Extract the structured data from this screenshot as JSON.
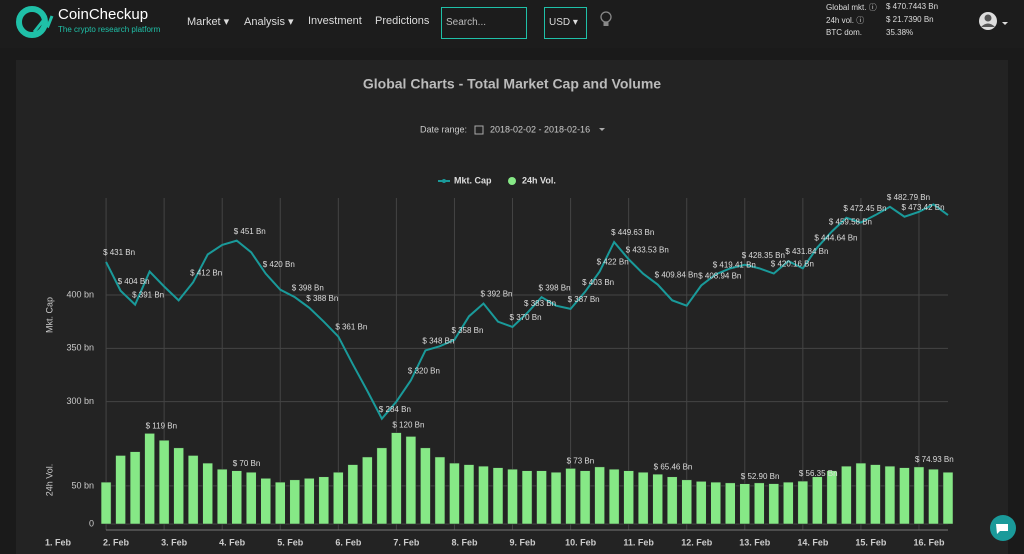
{
  "header": {
    "brand": "CoinCheckup",
    "tagline": "The crypto research platform",
    "menu": [
      "Market",
      "Analysis",
      "Investment",
      "Predictions"
    ],
    "search_placeholder": "Search...",
    "currency": "USD",
    "stats": [
      {
        "label": "Global mkt.",
        "value": "$ 470.7443 Bn"
      },
      {
        "label": "24h vol.",
        "value": "$ 21.7390 Bn"
      },
      {
        "label": "BTC dom.",
        "value": "35.38%"
      }
    ]
  },
  "chart_data": {
    "type": "line",
    "title": "Global Charts - Total Market Cap and Volume",
    "date_range_label": "Date range:",
    "date_range": "2018-02-02 - 2018-02-16",
    "ylabel": "Mkt. Cap",
    "y2label": "24h Vol.",
    "x": [
      2,
      2.25,
      2.5,
      2.75,
      3,
      3.25,
      3.5,
      3.75,
      4,
      4.25,
      4.5,
      4.75,
      5,
      5.25,
      5.5,
      5.75,
      6,
      6.25,
      6.5,
      6.75,
      7,
      7.25,
      7.5,
      7.75,
      8,
      8.25,
      8.5,
      8.75,
      9,
      9.25,
      9.5,
      9.75,
      10,
      10.25,
      10.5,
      10.75,
      11,
      11.25,
      11.5,
      11.75,
      12,
      12.25,
      12.5,
      12.75,
      13,
      13.25,
      13.5,
      13.75,
      14,
      14.25,
      14.5,
      14.75,
      15,
      15.25,
      15.5,
      15.75,
      16,
      16.25,
      16.5
    ],
    "xlim": [
      1,
      16.5
    ],
    "xticks": [
      {
        "value": 1,
        "label": "1. Feb"
      },
      {
        "value": 2,
        "label": "2. Feb"
      },
      {
        "value": 3,
        "label": "3. Feb"
      },
      {
        "value": 4,
        "label": "4. Feb"
      },
      {
        "value": 5,
        "label": "5. Feb"
      },
      {
        "value": 6,
        "label": "6. Feb"
      },
      {
        "value": 7,
        "label": "7. Feb"
      },
      {
        "value": 8,
        "label": "8. Feb"
      },
      {
        "value": 9,
        "label": "9. Feb"
      },
      {
        "value": 10,
        "label": "10. Feb"
      },
      {
        "value": 11,
        "label": "11. Feb"
      },
      {
        "value": 12,
        "label": "12. Feb"
      },
      {
        "value": 13,
        "label": "13. Feb"
      },
      {
        "value": 14,
        "label": "14. Feb"
      },
      {
        "value": 15,
        "label": "15. Feb"
      },
      {
        "value": 16,
        "label": "16. Feb"
      }
    ],
    "ylim": [
      264,
      491
    ],
    "yticks": [
      {
        "value": 300,
        "label": "300 bn"
      },
      {
        "value": 350,
        "label": "350 bn"
      },
      {
        "value": 400,
        "label": "400 bn"
      }
    ],
    "y2lim": [
      0,
      130
    ],
    "y2ticks": [
      0,
      {
        "value": 50,
        "label": "50 bn"
      }
    ],
    "series": [
      {
        "name": "Mkt. Cap",
        "type": "line",
        "color": "#1a9a9a",
        "values": [
          431,
          404,
          391,
          422,
          408,
          395,
          412,
          438,
          447,
          451,
          440,
          420,
          405,
          398,
          388,
          375,
          361,
          335,
          310,
          284,
          300,
          320,
          348,
          352,
          358,
          380,
          392,
          375,
          370,
          383,
          398,
          390,
          387,
          403,
          422,
          449.63,
          433.53,
          420,
          409.84,
          395,
          390,
          408.94,
          419.41,
          425,
          428.35,
          425,
          420.16,
          431.84,
          425,
          444.64,
          459.58,
          472.45,
          468,
          475,
          482.79,
          473.42,
          478,
          485,
          475
        ],
        "value_labels": [
          "$ 431 Bn",
          "$ 404 Bn",
          "$ 391 Bn",
          null,
          null,
          null,
          "$ 412 Bn",
          null,
          null,
          "$ 451 Bn",
          null,
          "$ 420 Bn",
          null,
          "$ 398 Bn",
          "$ 388 Bn",
          null,
          "$ 361 Bn",
          null,
          null,
          "$ 284 Bn",
          null,
          "$ 320 Bn",
          "$ 348 Bn",
          null,
          "$ 358 Bn",
          null,
          "$ 392 Bn",
          null,
          "$ 370 Bn",
          "$ 383 Bn",
          "$ 398 Bn",
          null,
          "$ 387 Bn",
          "$ 403 Bn",
          "$ 422 Bn",
          "$ 449.63 Bn",
          "$ 433.53 Bn",
          null,
          "$ 409.84 Bn",
          null,
          null,
          "$ 408.94 Bn",
          "$ 419.41 Bn",
          null,
          "$ 428.35 Bn",
          null,
          "$ 420.16 Bn",
          "$ 431.84 Bn",
          null,
          "$ 444.64 Bn",
          "$ 459.58 Bn",
          "$ 472.45 Bn",
          null,
          null,
          "$ 482.79 Bn",
          "$ 473.42 Bn",
          null,
          null,
          null
        ]
      },
      {
        "name": "24h Vol.",
        "type": "bar",
        "axis": "y2",
        "color": "#86e886",
        "values": [
          55,
          90,
          95,
          119,
          110,
          100,
          90,
          80,
          72,
          70,
          68,
          60,
          55,
          58,
          60,
          62,
          68,
          78,
          88,
          100,
          120,
          115,
          100,
          88,
          80,
          78,
          76,
          74,
          72,
          70,
          70,
          68,
          73,
          70,
          75,
          72,
          70,
          68,
          65.46,
          62,
          58,
          56,
          55,
          54,
          52.9,
          54,
          53,
          55,
          56.35,
          62,
          70,
          76,
          80,
          78,
          76,
          74,
          74.93,
          72,
          68
        ],
        "value_labels": [
          null,
          null,
          null,
          "$ 119 Bn",
          null,
          null,
          null,
          null,
          null,
          "$ 70 Bn",
          null,
          null,
          null,
          null,
          null,
          null,
          null,
          null,
          null,
          null,
          "$ 120 Bn",
          null,
          null,
          null,
          null,
          null,
          null,
          null,
          null,
          null,
          null,
          null,
          "$ 73 Bn",
          null,
          null,
          null,
          null,
          null,
          "$ 65.46 Bn",
          null,
          null,
          null,
          null,
          null,
          "$ 52.90 Bn",
          null,
          null,
          null,
          "$ 56.35 Bn",
          null,
          null,
          null,
          null,
          null,
          null,
          null,
          "$ 74.93 Bn",
          null,
          null
        ]
      }
    ]
  }
}
